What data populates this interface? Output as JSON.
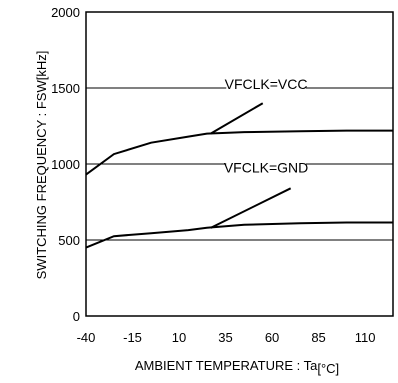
{
  "chart_data": {
    "type": "line",
    "title": "",
    "xlabel": "AMBIENT TEMPERATURE : Ta[°C]",
    "ylabel": "SWITCHING FREQUENCY : FSW[kHz]",
    "xlim": [
      -40,
      125
    ],
    "ylim": [
      0,
      2000
    ],
    "xticks": [
      -40,
      -15,
      10,
      35,
      60,
      85,
      110
    ],
    "yticks": [
      0,
      500,
      1000,
      1500,
      2000
    ],
    "grid": true,
    "series": [
      {
        "name": "VFCLK=VCC",
        "x": [
          -40,
          -25,
          -5,
          15,
          25,
          45,
          75,
          100,
          125
        ],
        "y": [
          930,
          1065,
          1140,
          1180,
          1200,
          1210,
          1215,
          1220,
          1220
        ]
      },
      {
        "name": "VFCLK=GND",
        "x": [
          -40,
          -25,
          -5,
          15,
          25,
          45,
          75,
          100,
          125
        ],
        "y": [
          450,
          525,
          545,
          565,
          580,
          600,
          610,
          615,
          615
        ]
      }
    ],
    "annotations": [
      {
        "text": "VFCLK=VCC",
        "x": 60,
        "y": 1500,
        "pointer": {
          "from": [
            55,
            1400
          ],
          "to": [
            27,
            1200
          ]
        }
      },
      {
        "text": "VFCLK=GND",
        "x": 60,
        "y": 950,
        "pointer": {
          "from": [
            70,
            840
          ],
          "to": [
            27,
            580
          ]
        }
      }
    ]
  }
}
